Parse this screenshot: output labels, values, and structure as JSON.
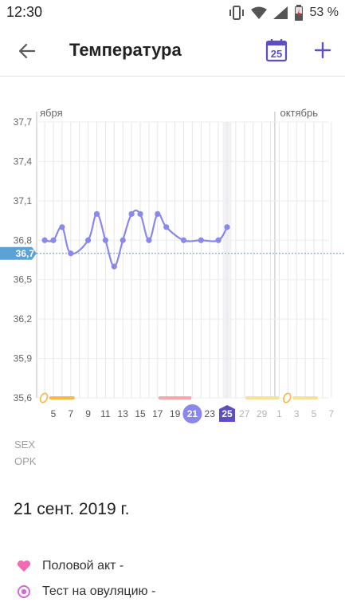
{
  "status_bar": {
    "time": "12:30",
    "battery_percent": "53 %",
    "icons": [
      "vibrate-icon",
      "wifi-icon",
      "signal-icon",
      "battery-icon"
    ]
  },
  "app_bar": {
    "title": "Температура",
    "calendar_day": "25",
    "accent_color": "#5c4fc5"
  },
  "chart_data": {
    "type": "line",
    "title": "",
    "xlabel": "",
    "ylabel": "",
    "month_labels": {
      "left": "ября",
      "right": "октябрь"
    },
    "y_ticks": [
      "37,7",
      "37,4",
      "37,1",
      "36,8",
      "36,5",
      "36,2",
      "35,9",
      "35,6"
    ],
    "ylim": [
      35.6,
      37.7
    ],
    "baseline": {
      "value": 36.7,
      "label": "36,7"
    },
    "x_tick_labels": [
      "5",
      "7",
      "9",
      "11",
      "13",
      "15",
      "17",
      "19",
      "21",
      "23",
      "25",
      "27",
      "29",
      "1",
      "3",
      "5",
      "7"
    ],
    "selected_day": "21",
    "today": "25",
    "series": [
      {
        "points": [
          {
            "x": "2019-09-04",
            "y": 36.8
          },
          {
            "x": "2019-09-05",
            "y": 36.8
          },
          {
            "x": "2019-09-06",
            "y": 36.9
          },
          {
            "x": "2019-09-07",
            "y": 36.7
          },
          {
            "x": "2019-09-09",
            "y": 36.8
          },
          {
            "x": "2019-09-10",
            "y": 37.0
          },
          {
            "x": "2019-09-11",
            "y": 36.8
          },
          {
            "x": "2019-09-12",
            "y": 36.6
          },
          {
            "x": "2019-09-13",
            "y": 36.8
          },
          {
            "x": "2019-09-14",
            "y": 37.0
          },
          {
            "x": "2019-09-15",
            "y": 37.0
          },
          {
            "x": "2019-09-16",
            "y": 36.8
          },
          {
            "x": "2019-09-17",
            "y": 37.0
          },
          {
            "x": "2019-09-18",
            "y": 36.9
          },
          {
            "x": "2019-09-20",
            "y": 36.8
          },
          {
            "x": "2019-09-22",
            "y": 36.8
          },
          {
            "x": "2019-09-24",
            "y": 36.8
          },
          {
            "x": "2019-09-25",
            "y": 36.9
          }
        ]
      }
    ],
    "colors": {
      "line": "#8a87ee",
      "baseline": "#5aa3d6",
      "selected": "#8a87ee",
      "today": "#5c4fc5",
      "fertile_bar": "#f5b840",
      "period_bar": "#f2a8a8",
      "predicted_bar": "#f7e09a"
    }
  },
  "rows": {
    "sex": "SEX",
    "opk": "OPK"
  },
  "day_info": {
    "date": "21 сент. 2019 г.",
    "events": [
      {
        "icon": "heart-icon",
        "text": "Половой акт -",
        "color": "#f06bb2"
      },
      {
        "icon": "ovulation-test-icon",
        "text": "Тест на овуляцию -",
        "color": "#d16bd8"
      }
    ]
  }
}
